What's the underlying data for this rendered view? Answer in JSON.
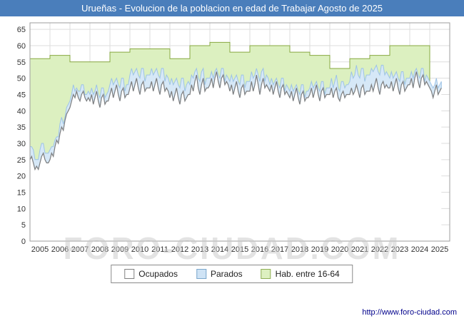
{
  "title": {
    "text": "Urueñas - Evolucion de la poblacion en edad de Trabajar Agosto de 2025",
    "bg": "#4a7ebb",
    "fg": "#ffffff"
  },
  "watermark": "FORO-CIUDAD.COM",
  "footer": {
    "url": "http://www.foro-ciudad.com"
  },
  "legend": [
    {
      "label": "Ocupados",
      "fill": "#ffffff",
      "border": "#808080"
    },
    {
      "label": "Parados",
      "fill": "#cfe3f5",
      "border": "#7ba7cc"
    },
    {
      "label": "Hab. entre 16-64",
      "fill": "#ddf0c0",
      "border": "#8fae55"
    }
  ],
  "chart_data": {
    "type": "area",
    "title": "Urueñas - Evolucion de la poblacion en edad de Trabajar Agosto de 2025",
    "xlabel": "",
    "ylabel": "",
    "grid": true,
    "legend_position": "bottom",
    "ylim": [
      0,
      67
    ],
    "yticks": [
      0,
      5,
      10,
      15,
      20,
      25,
      30,
      35,
      40,
      45,
      50,
      55,
      60,
      65
    ],
    "x_start_year": 2005,
    "x_end_label": "Agosto 2025",
    "months_per_year": 12,
    "x_tick_labels": [
      "2005",
      "2006",
      "2007",
      "2008",
      "2009",
      "2010",
      "2011",
      "2012",
      "2013",
      "2014",
      "2015",
      "2016",
      "2017",
      "2018",
      "2019",
      "2020",
      "2021",
      "2022",
      "2023",
      "2024",
      "2025"
    ],
    "series": [
      {
        "name": "Ocupados",
        "type": "line-area",
        "color": "#7f7f7f",
        "fill": "#ffffff",
        "values": [
          25,
          26,
          24,
          22,
          23,
          22,
          24,
          26,
          27,
          25,
          24,
          24,
          25,
          27,
          26,
          29,
          31,
          30,
          33,
          35,
          34,
          37,
          39,
          40,
          41,
          43,
          45,
          44,
          46,
          44,
          43,
          45,
          46,
          44,
          43,
          44,
          43,
          45,
          42,
          44,
          46,
          43,
          41,
          44,
          45,
          42,
          43,
          43,
          45,
          47,
          44,
          46,
          48,
          45,
          43,
          46,
          47,
          44,
          45,
          45,
          47,
          49,
          46,
          48,
          50,
          47,
          45,
          48,
          49,
          46,
          47,
          47,
          47,
          49,
          46,
          48,
          50,
          47,
          45,
          48,
          49,
          46,
          47,
          46,
          44,
          46,
          43,
          45,
          47,
          44,
          42,
          45,
          46,
          43,
          44,
          45,
          45,
          48,
          46,
          49,
          51,
          47,
          45,
          48,
          50,
          46,
          47,
          47,
          48,
          50,
          47,
          50,
          52,
          49,
          47,
          50,
          51,
          48,
          49,
          48,
          46,
          48,
          45,
          47,
          49,
          46,
          44,
          47,
          48,
          45,
          46,
          46,
          46,
          49,
          46,
          48,
          51,
          48,
          45,
          48,
          50,
          47,
          48,
          47,
          46,
          48,
          45,
          47,
          49,
          46,
          44,
          47,
          48,
          45,
          46,
          45,
          44,
          46,
          43,
          45,
          47,
          44,
          42,
          45,
          46,
          43,
          44,
          44,
          45,
          47,
          44,
          46,
          48,
          45,
          43,
          46,
          47,
          44,
          45,
          45,
          45,
          47,
          44,
          46,
          47,
          44,
          43,
          45,
          46,
          44,
          45,
          45,
          45,
          47,
          45,
          46,
          48,
          46,
          44,
          47,
          48,
          45,
          46,
          46,
          46,
          48,
          46,
          48,
          50,
          47,
          45,
          48,
          49,
          47,
          48,
          47,
          47,
          49,
          46,
          48,
          50,
          47,
          45,
          48,
          49,
          46,
          47,
          48,
          48,
          50,
          47,
          50,
          52,
          49,
          47,
          50,
          51,
          48,
          49,
          48,
          47,
          46,
          44,
          46,
          48,
          45,
          46,
          47
        ]
      },
      {
        "name": "Parados",
        "type": "stacked-band",
        "color": "#9dc3e6",
        "fill": "#d6e8f7",
        "values": [
          4,
          3,
          4,
          3,
          2,
          3,
          4,
          4,
          3,
          2,
          3,
          3,
          3,
          2,
          3,
          2,
          1,
          2,
          3,
          3,
          2,
          1,
          2,
          2,
          2,
          2,
          3,
          2,
          1,
          2,
          3,
          3,
          2,
          1,
          2,
          2,
          2,
          2,
          3,
          2,
          2,
          2,
          3,
          3,
          2,
          2,
          2,
          3,
          3,
          3,
          4,
          3,
          2,
          3,
          4,
          4,
          3,
          2,
          3,
          3,
          4,
          4,
          5,
          4,
          3,
          4,
          5,
          5,
          4,
          3,
          4,
          4,
          4,
          4,
          5,
          4,
          3,
          4,
          5,
          5,
          4,
          3,
          4,
          4,
          4,
          4,
          5,
          4,
          3,
          4,
          5,
          5,
          4,
          3,
          4,
          4,
          3,
          3,
          4,
          3,
          2,
          3,
          4,
          4,
          3,
          2,
          3,
          3,
          2,
          2,
          3,
          2,
          1,
          2,
          3,
          3,
          2,
          1,
          2,
          2,
          3,
          3,
          4,
          3,
          2,
          3,
          4,
          4,
          3,
          2,
          3,
          3,
          3,
          3,
          4,
          3,
          2,
          3,
          4,
          4,
          3,
          2,
          3,
          3,
          2,
          2,
          3,
          2,
          1,
          2,
          3,
          3,
          2,
          1,
          2,
          2,
          2,
          2,
          3,
          2,
          1,
          2,
          3,
          3,
          2,
          1,
          2,
          2,
          2,
          2,
          3,
          2,
          1,
          2,
          3,
          3,
          2,
          1,
          2,
          2,
          2,
          3,
          3,
          3,
          4,
          3,
          3,
          4,
          3,
          3,
          3,
          3,
          4,
          5,
          5,
          5,
          6,
          5,
          6,
          6,
          5,
          4,
          5,
          5,
          5,
          5,
          6,
          5,
          4,
          5,
          6,
          6,
          5,
          4,
          4,
          4,
          3,
          3,
          4,
          3,
          2,
          3,
          4,
          4,
          3,
          2,
          3,
          2,
          2,
          2,
          3,
          2,
          1,
          2,
          3,
          3,
          2,
          1,
          2,
          2,
          2,
          2,
          3,
          2,
          2,
          2,
          2,
          2
        ]
      },
      {
        "name": "Hab. entre 16-64",
        "type": "step-area",
        "color": "#87a840",
        "fill": "#dcf0c0",
        "years": [
          2005,
          2006,
          2007,
          2008,
          2009,
          2010,
          2011,
          2012,
          2013,
          2014,
          2015,
          2016,
          2017,
          2018,
          2019,
          2020,
          2021,
          2022,
          2023,
          2024
        ],
        "values": [
          56,
          57,
          55,
          55,
          58,
          59,
          59,
          56,
          60,
          61,
          58,
          60,
          60,
          58,
          57,
          53,
          56,
          57,
          60,
          60
        ]
      }
    ]
  }
}
